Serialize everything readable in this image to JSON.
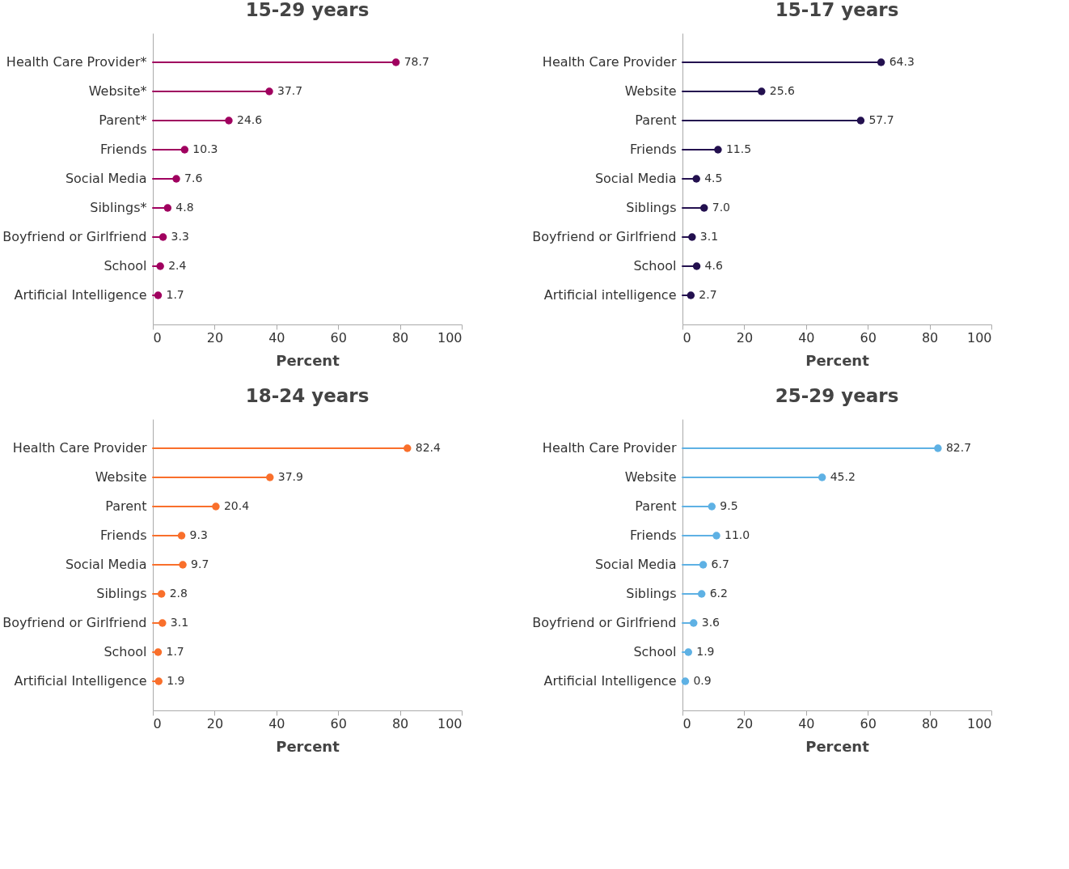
{
  "chart_data": [
    {
      "type": "lollipop",
      "title": "15-29 years",
      "orientation": "horizontal",
      "xlabel": "Percent",
      "xlim": [
        0,
        100
      ],
      "xticks": [
        0,
        20,
        40,
        60,
        80,
        100
      ],
      "grid": false,
      "marker": "circle",
      "categories": [
        "Health Care Provider*",
        "Website*",
        "Parent*",
        "Friends",
        "Social Media",
        "Siblings*",
        "Boyfriend or Girlfriend",
        "School",
        "Artificial Intelligence"
      ],
      "series": [
        {
          "color": "#a0005f",
          "values": [
            78.7,
            37.7,
            24.6,
            10.3,
            7.6,
            4.8,
            3.3,
            2.4,
            1.7
          ],
          "value_labels": [
            "78.7",
            "37.7",
            "24.6",
            "10.3",
            "7.6",
            "4.8",
            "3.3",
            "2.4",
            "1.7"
          ]
        }
      ]
    },
    {
      "type": "lollipop",
      "title": "15-17 years",
      "orientation": "horizontal",
      "xlabel": "Percent",
      "xlim": [
        0,
        100
      ],
      "xticks": [
        0,
        20,
        40,
        60,
        80,
        100
      ],
      "grid": false,
      "marker": "circle",
      "categories": [
        "Health Care Provider",
        "Website",
        "Parent",
        "Friends",
        "Social Media",
        "Siblings",
        "Boyfriend or Girlfriend",
        "School",
        "Artificial intelligence"
      ],
      "series": [
        {
          "color": "#23104f",
          "values": [
            64.3,
            25.6,
            57.7,
            11.5,
            4.5,
            7.0,
            3.1,
            4.6,
            2.7
          ],
          "value_labels": [
            "64.3",
            "25.6",
            "57.7",
            "11.5",
            "4.5",
            "7.0",
            "3.1",
            "4.6",
            "2.7"
          ]
        }
      ]
    },
    {
      "type": "lollipop",
      "title": "18-24 years",
      "orientation": "horizontal",
      "xlabel": "Percent",
      "xlim": [
        0,
        100
      ],
      "xticks": [
        0,
        20,
        40,
        60,
        80,
        100
      ],
      "grid": false,
      "marker": "circle",
      "categories": [
        "Health Care Provider",
        "Website",
        "Parent",
        "Friends",
        "Social Media",
        "Siblings",
        "Boyfriend or Girlfriend",
        "School",
        "Artificial Intelligence"
      ],
      "series": [
        {
          "color": "#f96f2b",
          "values": [
            82.4,
            37.9,
            20.4,
            9.3,
            9.7,
            2.8,
            3.1,
            1.7,
            1.9
          ],
          "value_labels": [
            "82.4",
            "37.9",
            "20.4",
            "9.3",
            "9.7",
            "2.8",
            "3.1",
            "1.7",
            "1.9"
          ]
        }
      ]
    },
    {
      "type": "lollipop",
      "title": "25-29 years",
      "orientation": "horizontal",
      "xlabel": "Percent",
      "xlim": [
        0,
        100
      ],
      "xticks": [
        0,
        20,
        40,
        60,
        80,
        100
      ],
      "grid": false,
      "marker": "circle",
      "categories": [
        "Health Care Provider",
        "Website",
        "Parent",
        "Friends",
        "Social Media",
        "Siblings",
        "Boyfriend or Girlfriend",
        "School",
        "Artificial Intelligence"
      ],
      "series": [
        {
          "color": "#5eb1e4",
          "values": [
            82.7,
            45.2,
            9.5,
            11.0,
            6.7,
            6.2,
            3.6,
            1.9,
            0.9
          ],
          "value_labels": [
            "82.7",
            "45.2",
            "9.5",
            "11.0",
            "6.7",
            "6.2",
            "3.6",
            "1.9",
            "0.9"
          ]
        }
      ]
    }
  ]
}
